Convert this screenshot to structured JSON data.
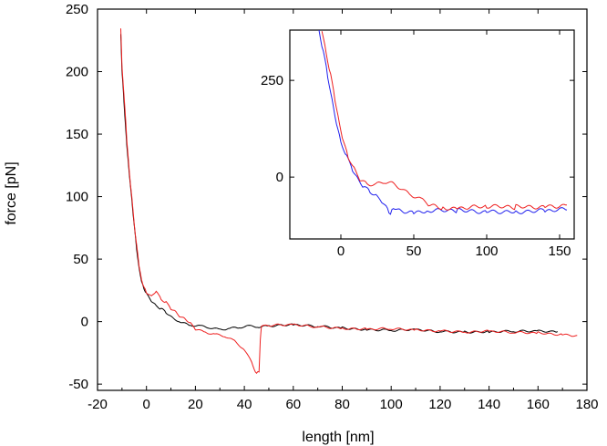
{
  "chart_data": [
    {
      "type": "line",
      "xlabel": "length [nm]",
      "ylabel": "force [pN]",
      "xlim": [
        -20,
        180
      ],
      "ylim": [
        -55,
        250
      ],
      "xticks": [
        -20,
        0,
        20,
        40,
        60,
        80,
        100,
        120,
        140,
        160,
        180
      ],
      "yticks": [
        -50,
        0,
        50,
        100,
        150,
        200,
        250
      ],
      "grid": false,
      "series": [
        {
          "color": "#000000",
          "points": [
            [
              -10.5,
              230
            ],
            [
              -10,
              200
            ],
            [
              -9,
              170
            ],
            [
              -8,
              140
            ],
            [
              -7,
              118
            ],
            [
              -6,
              98
            ],
            [
              -5,
              76
            ],
            [
              -4,
              58
            ],
            [
              -3,
              43
            ],
            [
              -2,
              32
            ],
            [
              -1,
              26
            ],
            [
              0,
              22
            ],
            [
              2,
              17
            ],
            [
              4,
              13
            ],
            [
              6,
              10
            ],
            [
              8,
              7
            ],
            [
              10,
              4
            ],
            [
              14,
              0
            ],
            [
              18,
              -3
            ],
            [
              22,
              -4
            ],
            [
              26,
              -5
            ],
            [
              30,
              -6
            ],
            [
              34,
              -5
            ],
            [
              38,
              -5
            ],
            [
              42,
              -4
            ],
            [
              46,
              -4
            ],
            [
              50,
              -3
            ],
            [
              60,
              -3
            ],
            [
              70,
              -4
            ],
            [
              80,
              -5
            ],
            [
              90,
              -6
            ],
            [
              100,
              -7
            ],
            [
              110,
              -7
            ],
            [
              120,
              -8
            ],
            [
              130,
              -8
            ],
            [
              140,
              -8
            ],
            [
              150,
              -8
            ],
            [
              160,
              -8
            ],
            [
              168,
              -8
            ]
          ]
        },
        {
          "color": "#ee2020",
          "points": [
            [
              -10.5,
              235
            ],
            [
              -10,
              205
            ],
            [
              -9,
              175
            ],
            [
              -8,
              145
            ],
            [
              -7,
              120
            ],
            [
              -6,
              100
            ],
            [
              -5,
              78
            ],
            [
              -4,
              60
            ],
            [
              -3,
              45
            ],
            [
              -2,
              34
            ],
            [
              -1,
              27
            ],
            [
              0,
              23
            ],
            [
              2,
              20
            ],
            [
              4,
              25
            ],
            [
              6,
              18
            ],
            [
              8,
              15
            ],
            [
              10,
              10
            ],
            [
              12,
              8
            ],
            [
              14,
              4
            ],
            [
              16,
              2
            ],
            [
              18,
              -2
            ],
            [
              20,
              -6
            ],
            [
              24,
              -8
            ],
            [
              28,
              -10
            ],
            [
              32,
              -12
            ],
            [
              36,
              -16
            ],
            [
              40,
              -22
            ],
            [
              43,
              -32
            ],
            [
              45,
              -42
            ],
            [
              46,
              -40
            ],
            [
              46.5,
              -15
            ],
            [
              47,
              -3
            ],
            [
              50,
              -3
            ],
            [
              60,
              -3
            ],
            [
              70,
              -4
            ],
            [
              80,
              -5
            ],
            [
              90,
              -6
            ],
            [
              100,
              -6
            ],
            [
              110,
              -7
            ],
            [
              120,
              -7
            ],
            [
              130,
              -8
            ],
            [
              140,
              -8
            ],
            [
              150,
              -9
            ],
            [
              160,
              -9
            ],
            [
              170,
              -10
            ],
            [
              176,
              -11
            ]
          ]
        }
      ]
    },
    {
      "type": "line",
      "xlim": [
        -35,
        160
      ],
      "ylim": [
        -160,
        380
      ],
      "xticks": [
        0,
        50,
        100,
        150
      ],
      "yticks": [
        0,
        250
      ],
      "grid": false,
      "series": [
        {
          "color": "#2020ee",
          "points": [
            [
              -15,
              380
            ],
            [
              -12,
              320
            ],
            [
              -9,
              260
            ],
            [
              -6,
              200
            ],
            [
              -3,
              140
            ],
            [
              0,
              90
            ],
            [
              4,
              50
            ],
            [
              8,
              20
            ],
            [
              12,
              -5
            ],
            [
              16,
              -25
            ],
            [
              20,
              -40
            ],
            [
              24,
              -50
            ],
            [
              28,
              -60
            ],
            [
              32,
              -80
            ],
            [
              34,
              -100
            ],
            [
              36,
              -80
            ],
            [
              40,
              -85
            ],
            [
              50,
              -90
            ],
            [
              60,
              -88
            ],
            [
              80,
              -88
            ],
            [
              100,
              -88
            ],
            [
              120,
              -88
            ],
            [
              140,
              -88
            ],
            [
              155,
              -85
            ]
          ]
        },
        {
          "color": "#ee2020",
          "points": [
            [
              -13,
              380
            ],
            [
              -10,
              320
            ],
            [
              -7,
              260
            ],
            [
              -4,
              200
            ],
            [
              -1,
              140
            ],
            [
              2,
              90
            ],
            [
              5,
              50
            ],
            [
              9,
              20
            ],
            [
              13,
              -5
            ],
            [
              18,
              -15
            ],
            [
              24,
              -20
            ],
            [
              30,
              -15
            ],
            [
              36,
              -18
            ],
            [
              42,
              -28
            ],
            [
              48,
              -45
            ],
            [
              55,
              -60
            ],
            [
              60,
              -72
            ],
            [
              70,
              -78
            ],
            [
              80,
              -80
            ],
            [
              100,
              -78
            ],
            [
              120,
              -78
            ],
            [
              140,
              -75
            ],
            [
              155,
              -72
            ]
          ]
        }
      ]
    }
  ]
}
